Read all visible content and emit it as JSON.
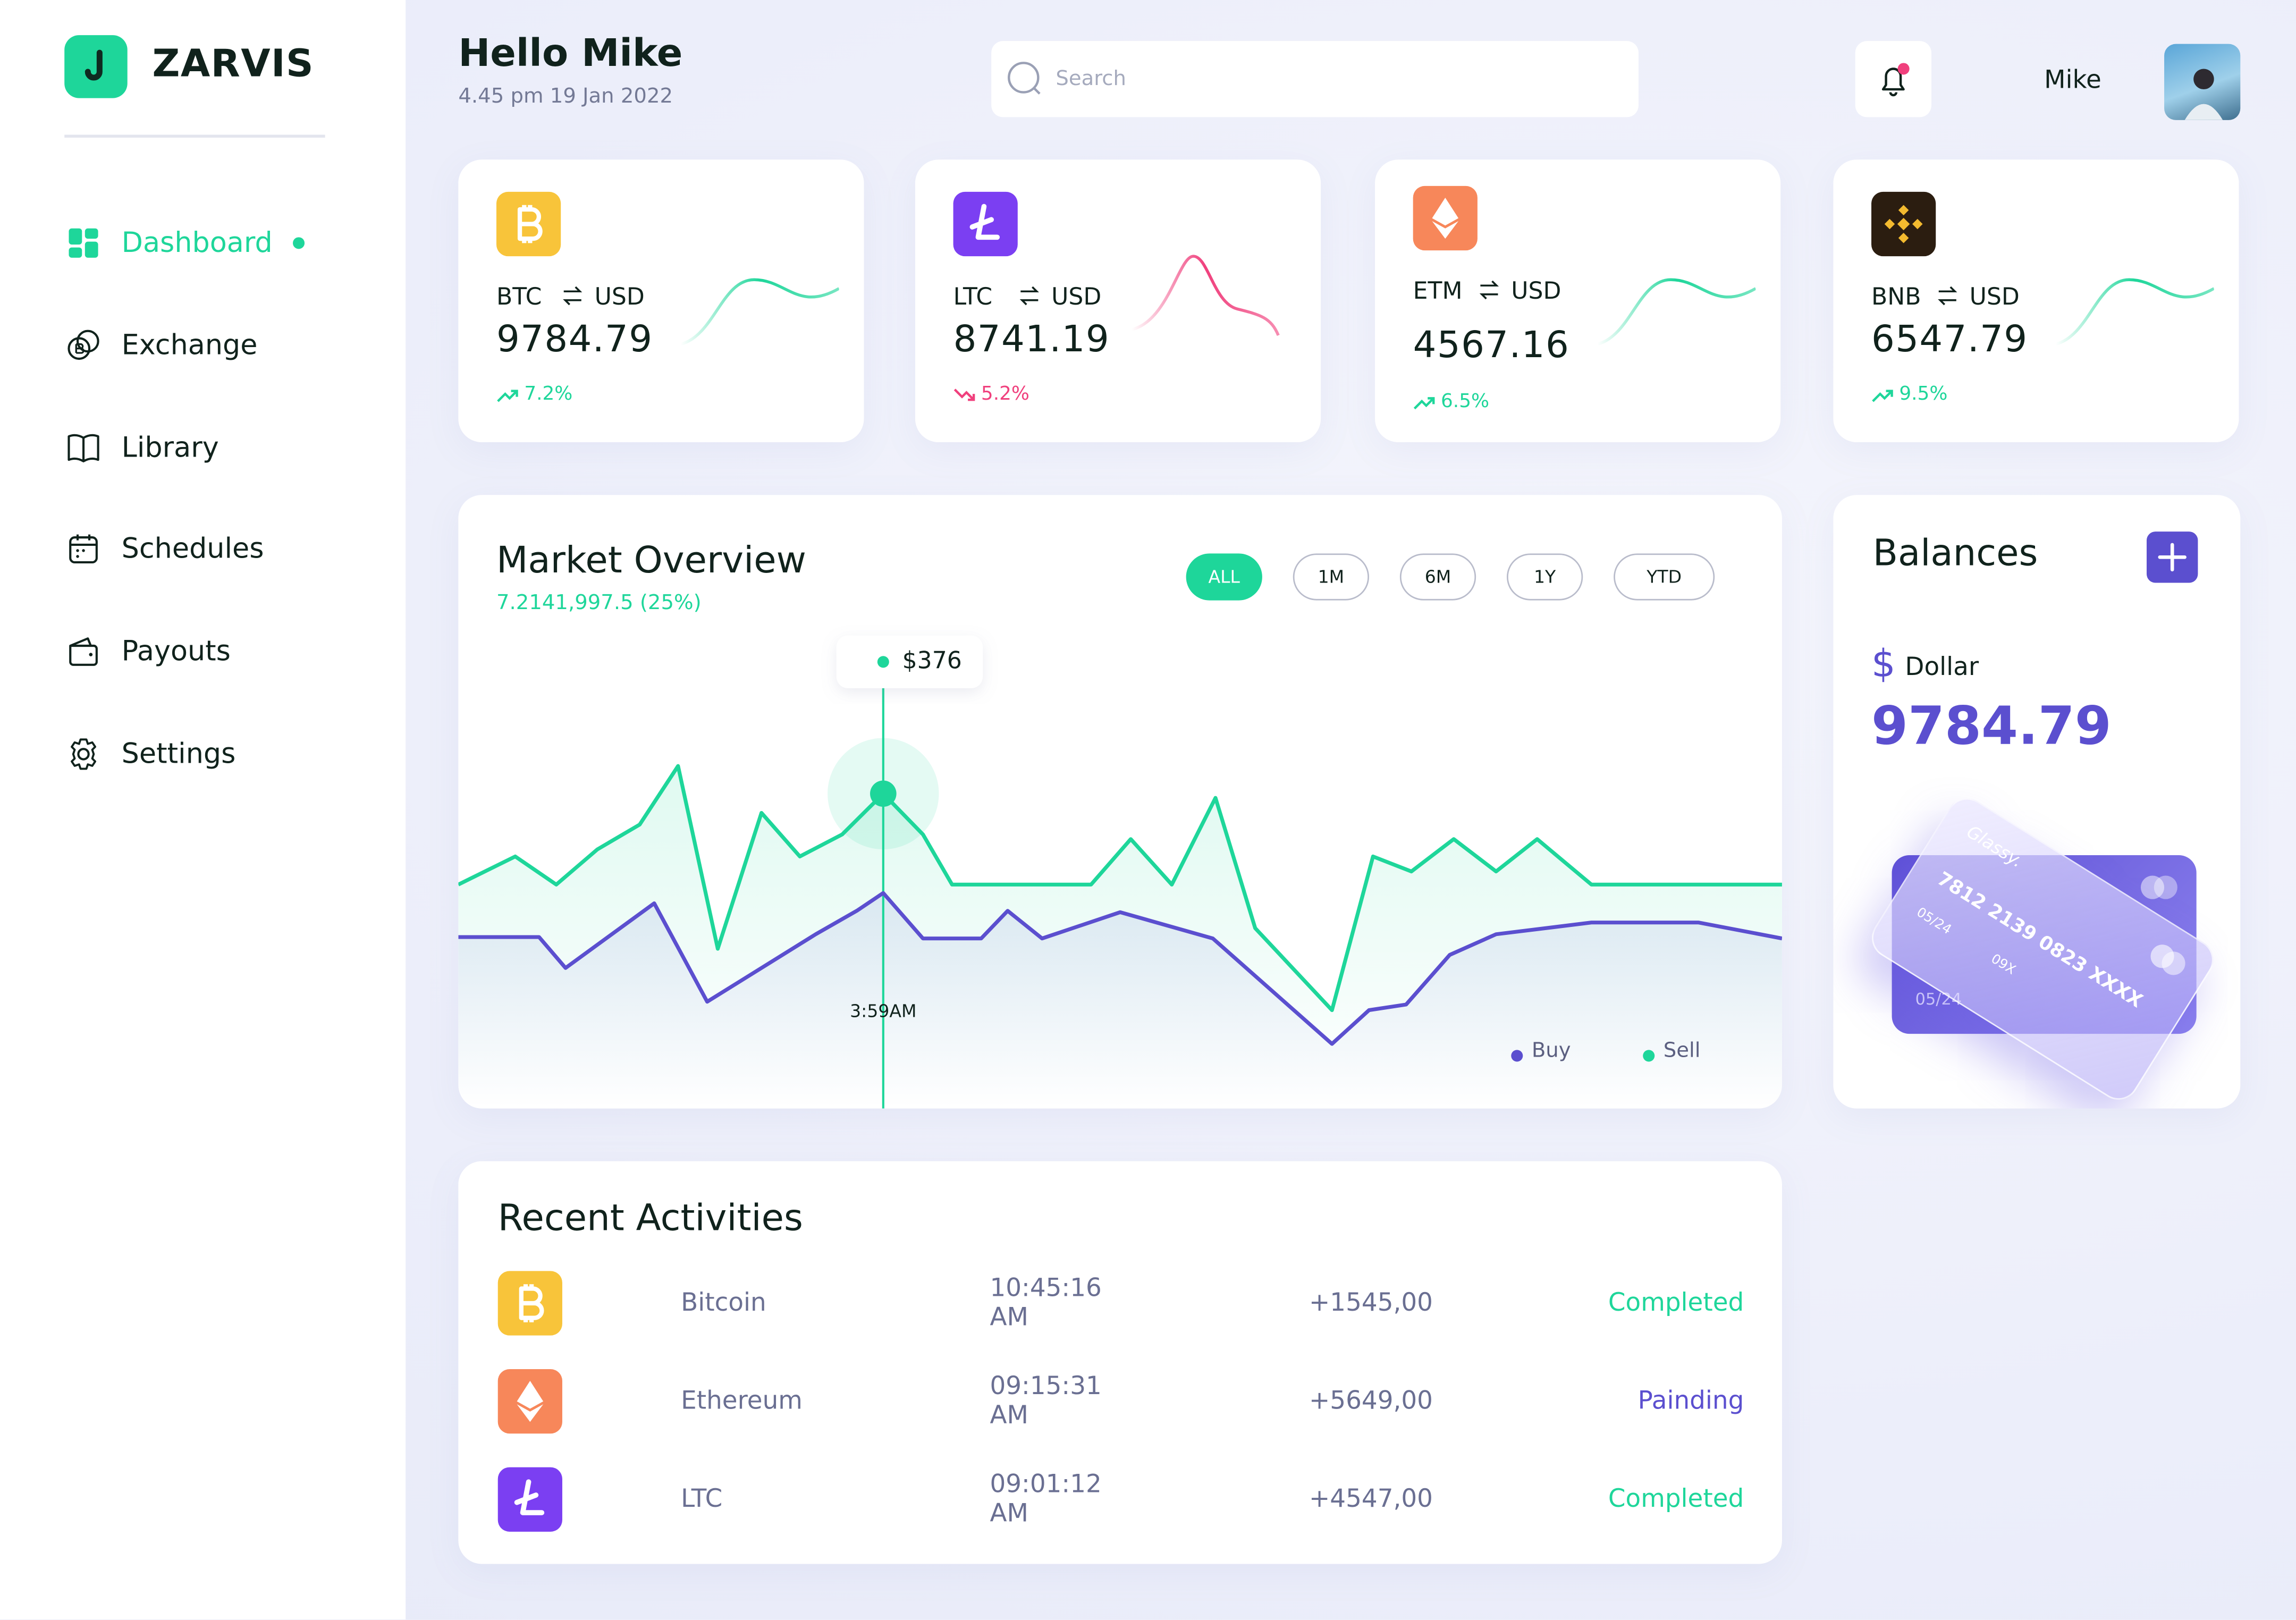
{
  "brand": "ZARVIS",
  "nav": [
    {
      "label": "Dashboard",
      "active": true
    },
    {
      "label": "Exchange"
    },
    {
      "label": "Library"
    },
    {
      "label": "Schedules"
    },
    {
      "label": "Payouts"
    },
    {
      "label": "Settings"
    }
  ],
  "header": {
    "greeting": "Hello Mike",
    "datetime": "4.45 pm 19 Jan 2022",
    "search_placeholder": "Search",
    "user": "Mike"
  },
  "tickers": [
    {
      "base": "BTC",
      "quote": "USD",
      "price": "9784.79",
      "change": "7.2%",
      "trend": "up",
      "color": "#f8c43a"
    },
    {
      "base": "LTC",
      "quote": "USD",
      "price": "8741.19",
      "change": "5.2%",
      "trend": "down",
      "color": "#7b3ff2"
    },
    {
      "base": "ETM",
      "quote": "USD",
      "price": "4567.16",
      "change": "6.5%",
      "trend": "up",
      "color": "#f7875a"
    },
    {
      "base": "BNB",
      "quote": "USD",
      "price": "6547.79",
      "change": "9.5%",
      "trend": "up",
      "color": "#2b1d10"
    }
  ],
  "market": {
    "title": "Market Overview",
    "subtitle": "7.2141,997.5 (25%)",
    "ranges": [
      {
        "label": "ALL",
        "active": true
      },
      {
        "label": "1M"
      },
      {
        "label": "6M"
      },
      {
        "label": "1Y"
      },
      {
        "label": "YTD"
      }
    ],
    "tooltip_value": "$376",
    "tooltip_time": "3:59AM",
    "chart": {
      "type": "line",
      "xlim": [
        0,
        100
      ],
      "ylim": [
        0,
        100
      ],
      "highlight_series": 1,
      "highlight_index": 10,
      "series": [
        {
          "name": "Buy",
          "color": "#5b4fcf",
          "x": [
            0,
            6.1,
            8.1,
            14.8,
            18.8,
            27.0,
            30.1,
            32.1,
            35.1,
            39.5,
            41.5,
            44.1,
            50.0,
            57.0,
            66.0,
            68.8,
            71.6,
            74.9,
            78.4,
            85.6,
            93.7,
            100
          ],
          "values": [
            34.4,
            34.4,
            27.8,
            41.6,
            20.6,
            35.0,
            40.0,
            43.8,
            34.1,
            34.1,
            40.0,
            34.1,
            39.7,
            34.1,
            11.6,
            18.8,
            20.0,
            30.6,
            35.0,
            37.5,
            37.5,
            34.1
          ]
        },
        {
          "name": "Sell",
          "color": "#1ed69a",
          "x": [
            0,
            4.3,
            7.4,
            10.5,
            13.7,
            16.6,
            19.6,
            22.9,
            25.8,
            29.0,
            32.1,
            35.1,
            37.3,
            47.8,
            50.8,
            53.9,
            57.2,
            60.2,
            66.0,
            69.1,
            72.0,
            75.2,
            78.4,
            81.5,
            85.6,
            100
          ],
          "values": [
            45.6,
            51.6,
            45.6,
            53.1,
            58.4,
            70.9,
            31.9,
            60.9,
            51.6,
            56.3,
            65.0,
            56.3,
            45.6,
            45.6,
            55.3,
            45.6,
            64.1,
            36.3,
            18.8,
            51.6,
            48.4,
            55.3,
            48.4,
            55.3,
            45.6,
            45.6
          ]
        }
      ]
    }
  },
  "balances": {
    "title": "Balances",
    "symbol": "$",
    "currency": "Dollar",
    "amount": "9784.79",
    "card": {
      "brand": "Glassy.",
      "number": "7812 2139 0823 XXXX",
      "expiry": "05/24",
      "cvv": "09X"
    }
  },
  "activities": {
    "title": "Recent Activities",
    "rows": [
      {
        "name": "Bitcoin",
        "time": "10:45:16 AM",
        "amount": "+1545,00",
        "status": "Completed",
        "color": "#f8c43a",
        "status_color": "#1ed69a"
      },
      {
        "name": "Ethereum",
        "time": "09:15:31 AM",
        "amount": "+5649,00",
        "status": "Painding",
        "color": "#f7875a",
        "status_color": "#5b4fcf"
      },
      {
        "name": "LTC",
        "time": "09:01:12 AM",
        "amount": "+4547,00",
        "status": "Completed",
        "color": "#7b3ff2",
        "status_color": "#1ed69a"
      }
    ]
  }
}
